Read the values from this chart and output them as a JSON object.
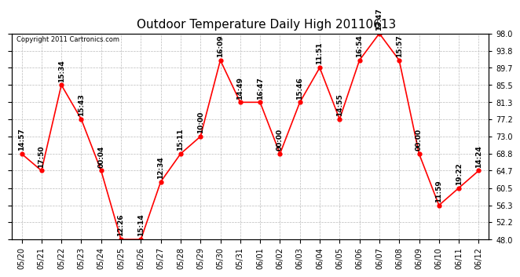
{
  "title": "Outdoor Temperature Daily High 20110613",
  "copyright": "Copyright 2011 Cartronics.com",
  "dates": [
    "05/20",
    "05/21",
    "05/22",
    "05/23",
    "05/24",
    "05/25",
    "05/26",
    "05/27",
    "05/28",
    "05/29",
    "05/30",
    "05/31",
    "06/01",
    "06/02",
    "06/03",
    "06/04",
    "06/05",
    "06/06",
    "06/07",
    "06/08",
    "06/09",
    "06/10",
    "06/11",
    "06/12"
  ],
  "temperatures": [
    68.8,
    64.7,
    85.5,
    77.2,
    64.7,
    48.0,
    48.0,
    62.0,
    68.8,
    73.0,
    91.5,
    81.3,
    81.3,
    68.8,
    81.3,
    89.7,
    77.2,
    91.5,
    98.0,
    91.5,
    68.8,
    56.3,
    60.5,
    64.7
  ],
  "time_labels": [
    "14:57",
    "17:50",
    "15:34",
    "15:43",
    "00:04",
    "12:26",
    "15:14",
    "12:34",
    "15:11",
    "10:00",
    "16:09",
    "14:49",
    "16:47",
    "00:00",
    "15:46",
    "11:51",
    "14:55",
    "16:54",
    "13:47",
    "15:57",
    "00:00",
    "11:59",
    "19:22",
    "14:24"
  ],
  "yticks": [
    48.0,
    52.2,
    56.3,
    60.5,
    64.7,
    68.8,
    73.0,
    77.2,
    81.3,
    85.5,
    89.7,
    93.8,
    98.0
  ],
  "line_color": "#ff0000",
  "marker_color": "#ff0000",
  "bg_color": "#ffffff",
  "plot_bg_color": "#ffffff",
  "grid_color": "#bbbbbb",
  "title_fontsize": 11,
  "tick_fontsize": 7,
  "label_fontsize": 6.5,
  "copyright_fontsize": 6
}
